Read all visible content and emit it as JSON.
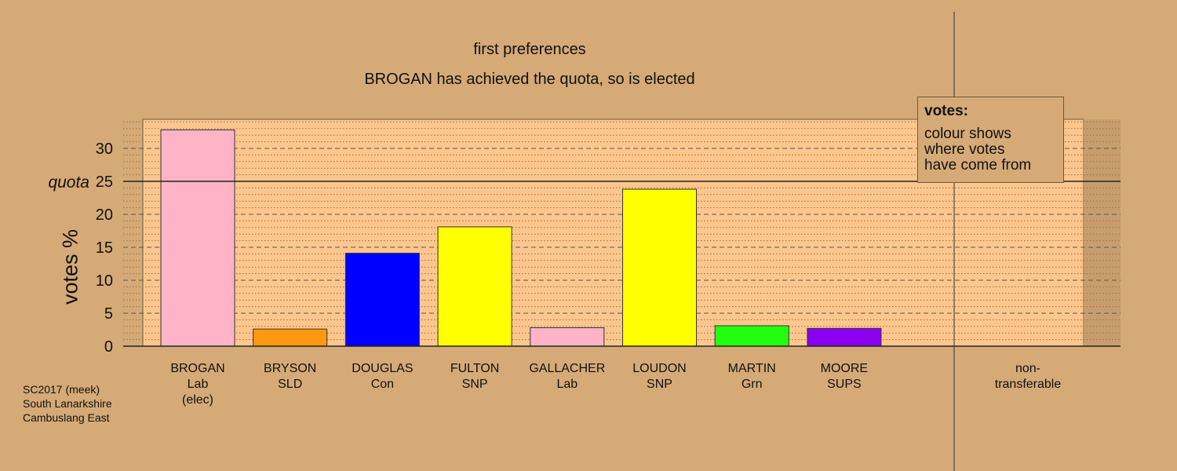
{
  "chart_data": {
    "type": "bar",
    "title": "first preferences",
    "subtitle": "BROGAN has achieved the quota, so is elected",
    "ylabel": "votes %",
    "ylim": [
      0,
      35
    ],
    "yticks": [
      0,
      5,
      10,
      15,
      20,
      25,
      30
    ],
    "quota": 25,
    "quota_label": "quota",
    "categories": [
      {
        "name": "BROGAN",
        "party": "Lab",
        "note": "(elec)",
        "value": 32.8,
        "color": "#ffb3c6"
      },
      {
        "name": "BRYSON",
        "party": "SLD",
        "note": "",
        "value": 2.6,
        "color": "#ff9912"
      },
      {
        "name": "DOUGLAS",
        "party": "Con",
        "note": "",
        "value": 14.1,
        "color": "#0000ff"
      },
      {
        "name": "FULTON",
        "party": "SNP",
        "note": "",
        "value": 18.1,
        "color": "#ffff00"
      },
      {
        "name": "GALLACHER",
        "party": "Lab",
        "note": "",
        "value": 2.8,
        "color": "#ffb3c6"
      },
      {
        "name": "LOUDON",
        "party": "SNP",
        "note": "",
        "value": 23.8,
        "color": "#ffff00"
      },
      {
        "name": "MARTIN",
        "party": "Grn",
        "note": "",
        "value": 3.1,
        "color": "#22ff11"
      },
      {
        "name": "MOORE",
        "party": "SUPS",
        "note": "",
        "value": 2.7,
        "color": "#8800ee"
      }
    ],
    "non_transferable": {
      "line1": "non-",
      "line2": "transferable",
      "value": 0
    },
    "legend": {
      "title": "votes:",
      "lines": [
        "colour shows",
        "where votes",
        "have come from"
      ],
      "placement": "top-right"
    },
    "grid": true
  },
  "footer": {
    "line1": "SC2017 (meek)",
    "line2": "South Lanarkshire",
    "line3": "Cambuslang East"
  }
}
